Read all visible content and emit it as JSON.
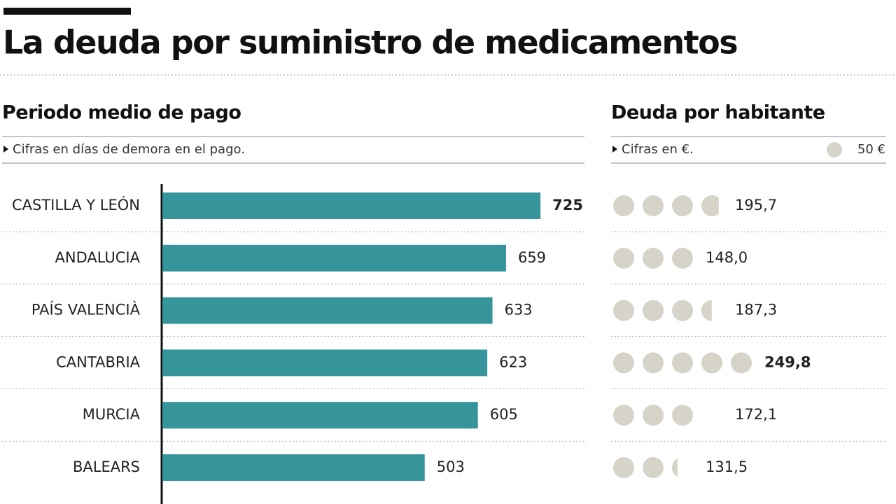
{
  "chart_data": [
    {
      "type": "hbar",
      "title": "La deuda por suministro de medicamentos",
      "subtitle": "Periodo medio de pago",
      "note": "Cifras en días de demora en el pago.",
      "categories": [
        "CASTILLA Y LEÓN",
        "ANDALUCIA",
        "PAÍS VALENCIÀ",
        "CANTABRIA",
        "MURCIA",
        "BALEARS"
      ],
      "values": [
        725,
        659,
        633,
        623,
        605,
        503
      ],
      "color": "#35959b",
      "xlim": [
        0,
        800
      ]
    },
    {
      "type": "pictogram",
      "subtitle": "Deuda por habitante",
      "note": "Cifras en €.",
      "unit": {
        "value": 50,
        "label": "50 €"
      },
      "values": [
        195.7,
        148.0,
        187.3,
        249.8,
        172.1,
        131.5
      ],
      "value_labels": [
        "195,7",
        "148,0",
        "187,3",
        "249,8",
        "172,1",
        "131,5"
      ],
      "color": "#d6d3c8"
    }
  ]
}
